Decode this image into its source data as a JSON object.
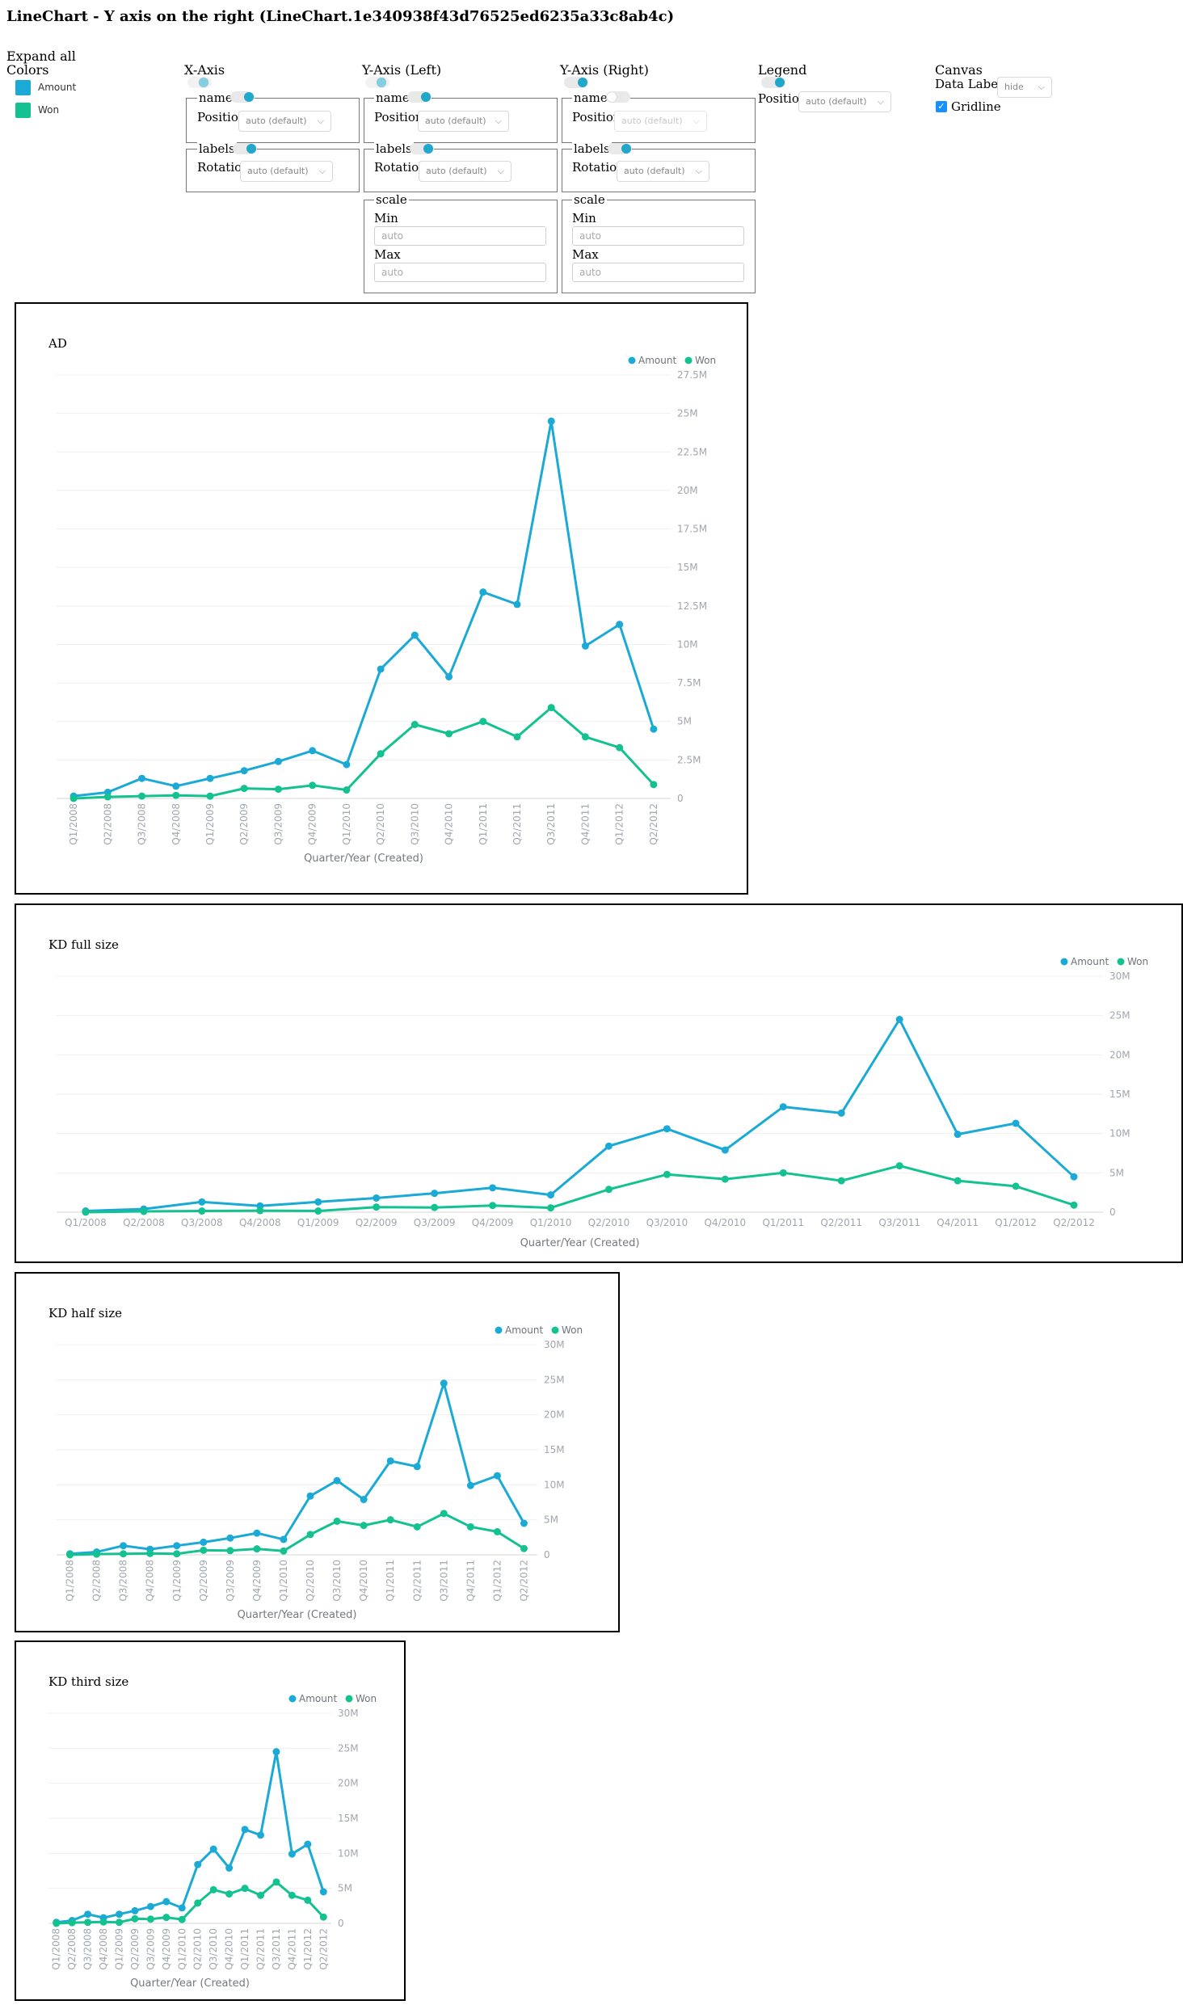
{
  "page_title": "LineChart - Y axis on the right (LineChart.1e340938f43d76525ed6235a33c8ab4c)",
  "expand_all": "Expand all",
  "colors": {
    "heading": "Colors",
    "items": [
      {
        "name": "Amount",
        "color": "#1aaad5"
      },
      {
        "name": "Won",
        "color": "#13c290"
      }
    ]
  },
  "controls": {
    "xaxis": {
      "heading": "X-Axis",
      "name_label": "name",
      "position_label": "Position",
      "position_value": "auto (default)",
      "labels_label": "labels",
      "rotation_label": "Rotation",
      "rotation_value": "auto (default)"
    },
    "yaxis_left": {
      "heading": "Y-Axis (Left)",
      "name_label": "name",
      "position_label": "Position",
      "position_value": "auto (default)",
      "labels_label": "labels",
      "rotation_label": "Rotation",
      "rotation_value": "auto (default)",
      "scale_label": "scale",
      "min_label": "Min",
      "min_placeholder": "auto",
      "max_label": "Max",
      "max_placeholder": "auto"
    },
    "yaxis_right": {
      "heading": "Y-Axis (Right)",
      "name_label": "name",
      "position_label": "Position",
      "position_value": "auto (default)",
      "labels_label": "labels",
      "rotation_label": "Rotation",
      "rotation_value": "auto (default)",
      "scale_label": "scale",
      "min_label": "Min",
      "min_placeholder": "auto",
      "max_label": "Max",
      "max_placeholder": "auto"
    },
    "legend": {
      "heading": "Legend",
      "position_label": "Position",
      "position_value": "auto (default)"
    },
    "canvas": {
      "heading": "Canvas",
      "data_labels_label": "Data Labels",
      "data_labels_value": "hide",
      "gridline_label": "Gridline",
      "gridline_checked": true,
      "check_glyph": "✓"
    },
    "chevron": "⌵"
  },
  "charts": [
    {
      "title": "AD"
    },
    {
      "title": "KD full size"
    },
    {
      "title": "KD half size"
    },
    {
      "title": "KD third size"
    }
  ],
  "chart_data": [
    {
      "type": "line",
      "title": "AD",
      "xlabel": "Quarter/Year (Created)",
      "y_axis_position": "right",
      "legend_position": "top-right",
      "grid": true,
      "categories": [
        "Q1/2008",
        "Q2/2008",
        "Q3/2008",
        "Q4/2008",
        "Q1/2009",
        "Q2/2009",
        "Q3/2009",
        "Q4/2009",
        "Q1/2010",
        "Q2/2010",
        "Q3/2010",
        "Q4/2010",
        "Q1/2011",
        "Q2/2011",
        "Q3/2011",
        "Q4/2011",
        "Q1/2012",
        "Q2/2012"
      ],
      "ylim": [
        0,
        27500000
      ],
      "yticks": [
        0,
        2500000,
        5000000,
        7500000,
        10000000,
        12500000,
        15000000,
        17500000,
        20000000,
        22500000,
        25000000,
        27500000
      ],
      "ytick_labels": [
        "0",
        "2.5M",
        "5M",
        "7.5M",
        "10M",
        "12.5M",
        "15M",
        "17.5M",
        "20M",
        "22.5M",
        "25M",
        "27.5M"
      ],
      "series": [
        {
          "name": "Amount",
          "values": [
            150000,
            400000,
            1300000,
            800000,
            1300000,
            1800000,
            2400000,
            3100000,
            2200000,
            8400000,
            10600000,
            7900000,
            13400000,
            12600000,
            24500000,
            9900000,
            11300000,
            4500000
          ]
        },
        {
          "name": "Won",
          "values": [
            0,
            100000,
            150000,
            200000,
            150000,
            650000,
            600000,
            850000,
            550000,
            2900000,
            4800000,
            4200000,
            5000000,
            4000000,
            5900000,
            4000000,
            3300000,
            900000
          ]
        }
      ]
    },
    {
      "type": "line",
      "title": "KD full size",
      "xlabel": "Quarter/Year (Created)",
      "y_axis_position": "right",
      "legend_position": "top-right",
      "grid": true,
      "categories": [
        "Q1/2008",
        "Q2/2008",
        "Q3/2008",
        "Q4/2008",
        "Q1/2009",
        "Q2/2009",
        "Q3/2009",
        "Q4/2009",
        "Q1/2010",
        "Q2/2010",
        "Q3/2010",
        "Q4/2010",
        "Q1/2011",
        "Q2/2011",
        "Q3/2011",
        "Q4/2011",
        "Q1/2012",
        "Q2/2012"
      ],
      "ylim": [
        0,
        30000000
      ],
      "yticks": [
        0,
        5000000,
        10000000,
        15000000,
        20000000,
        25000000,
        30000000
      ],
      "ytick_labels": [
        "0",
        "5M",
        "10M",
        "15M",
        "20M",
        "25M",
        "30M"
      ],
      "series": [
        {
          "name": "Amount",
          "values": [
            150000,
            400000,
            1300000,
            800000,
            1300000,
            1800000,
            2400000,
            3100000,
            2200000,
            8400000,
            10600000,
            7900000,
            13400000,
            12600000,
            24500000,
            9900000,
            11300000,
            4500000
          ]
        },
        {
          "name": "Won",
          "values": [
            0,
            100000,
            150000,
            200000,
            150000,
            650000,
            600000,
            850000,
            550000,
            2900000,
            4800000,
            4200000,
            5000000,
            4000000,
            5900000,
            4000000,
            3300000,
            900000
          ]
        }
      ]
    },
    {
      "type": "line",
      "title": "KD half size",
      "xlabel": "Quarter/Year (Created)",
      "y_axis_position": "right",
      "legend_position": "top-right",
      "grid": true,
      "categories": [
        "Q1/2008",
        "Q2/2008",
        "Q3/2008",
        "Q4/2008",
        "Q1/2009",
        "Q2/2009",
        "Q3/2009",
        "Q4/2009",
        "Q1/2010",
        "Q2/2010",
        "Q3/2010",
        "Q4/2010",
        "Q1/2011",
        "Q2/2011",
        "Q3/2011",
        "Q4/2011",
        "Q1/2012",
        "Q2/2012"
      ],
      "ylim": [
        0,
        30000000
      ],
      "yticks": [
        0,
        5000000,
        10000000,
        15000000,
        20000000,
        25000000,
        30000000
      ],
      "ytick_labels": [
        "0",
        "5M",
        "10M",
        "15M",
        "20M",
        "25M",
        "30M"
      ],
      "series": [
        {
          "name": "Amount",
          "values": [
            150000,
            400000,
            1300000,
            800000,
            1300000,
            1800000,
            2400000,
            3100000,
            2200000,
            8400000,
            10600000,
            7900000,
            13400000,
            12600000,
            24500000,
            9900000,
            11300000,
            4500000
          ]
        },
        {
          "name": "Won",
          "values": [
            0,
            100000,
            150000,
            200000,
            150000,
            650000,
            600000,
            850000,
            550000,
            2900000,
            4800000,
            4200000,
            5000000,
            4000000,
            5900000,
            4000000,
            3300000,
            900000
          ]
        }
      ]
    },
    {
      "type": "line",
      "title": "KD third size",
      "xlabel": "Quarter/Year (Created)",
      "y_axis_position": "right",
      "legend_position": "top-right",
      "grid": true,
      "categories": [
        "Q1/2008",
        "Q2/2008",
        "Q3/2008",
        "Q4/2008",
        "Q1/2009",
        "Q2/2009",
        "Q3/2009",
        "Q4/2009",
        "Q1/2010",
        "Q2/2010",
        "Q3/2010",
        "Q4/2010",
        "Q1/2011",
        "Q2/2011",
        "Q3/2011",
        "Q4/2011",
        "Q1/2012",
        "Q2/2012"
      ],
      "ylim": [
        0,
        30000000
      ],
      "yticks": [
        0,
        5000000,
        10000000,
        15000000,
        20000000,
        25000000,
        30000000
      ],
      "ytick_labels": [
        "0",
        "5M",
        "10M",
        "15M",
        "20M",
        "25M",
        "30M"
      ],
      "series": [
        {
          "name": "Amount",
          "values": [
            150000,
            400000,
            1300000,
            800000,
            1300000,
            1800000,
            2400000,
            3100000,
            2200000,
            8400000,
            10600000,
            7900000,
            13400000,
            12600000,
            24500000,
            9900000,
            11300000,
            4500000
          ]
        },
        {
          "name": "Won",
          "values": [
            0,
            100000,
            150000,
            200000,
            150000,
            650000,
            600000,
            850000,
            550000,
            2900000,
            4800000,
            4200000,
            5000000,
            4000000,
            5900000,
            4000000,
            3300000,
            900000
          ]
        }
      ]
    }
  ]
}
